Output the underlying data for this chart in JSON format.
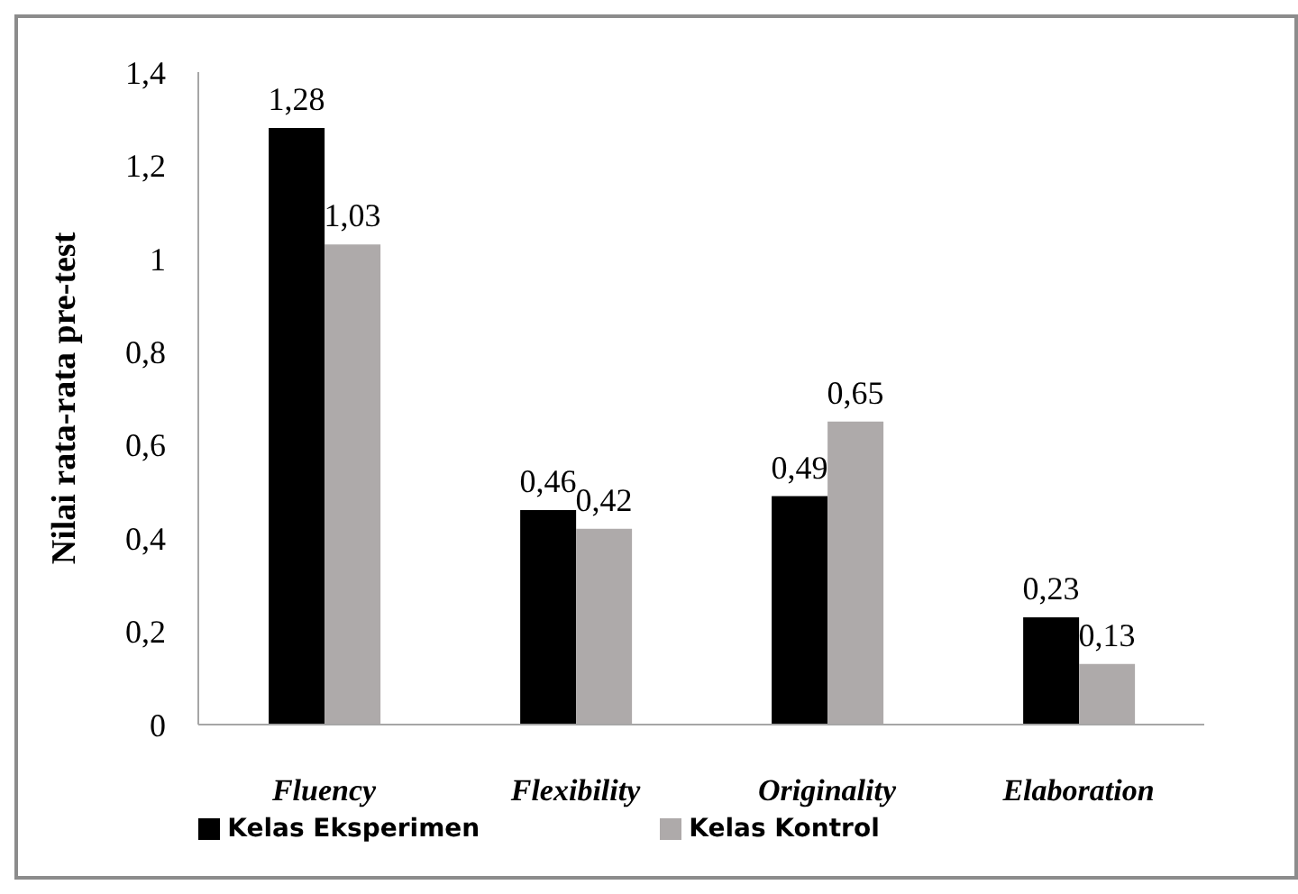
{
  "chart_data": {
    "type": "bar",
    "ylabel": "Nilai rata-rata pre-test",
    "categories": [
      "Fluency",
      "Flexibility",
      "Originality",
      "Elaboration"
    ],
    "series": [
      {
        "name": "Kelas Eksperimen",
        "color": "#000000",
        "values": [
          1.28,
          0.46,
          0.49,
          0.23
        ],
        "value_labels": [
          "1,28",
          "0,46",
          "0,49",
          "0,23"
        ]
      },
      {
        "name": "Kelas Kontrol",
        "color": "#aeaaaa",
        "values": [
          1.03,
          0.42,
          0.65,
          0.13
        ],
        "value_labels": [
          "1,03",
          "0,42",
          "0,65",
          "0,13"
        ]
      }
    ],
    "ylim": [
      0,
      1.4
    ],
    "yticks": [
      {
        "value": 0,
        "label": "0"
      },
      {
        "value": 0.2,
        "label": "0,2"
      },
      {
        "value": 0.4,
        "label": "0,4"
      },
      {
        "value": 0.6,
        "label": "0,6"
      },
      {
        "value": 0.8,
        "label": "0,8"
      },
      {
        "value": 1,
        "label": "1"
      },
      {
        "value": 1.2,
        "label": "1,2"
      },
      {
        "value": 1.4,
        "label": "1,4"
      }
    ],
    "grid": false,
    "legend": "bottom"
  }
}
